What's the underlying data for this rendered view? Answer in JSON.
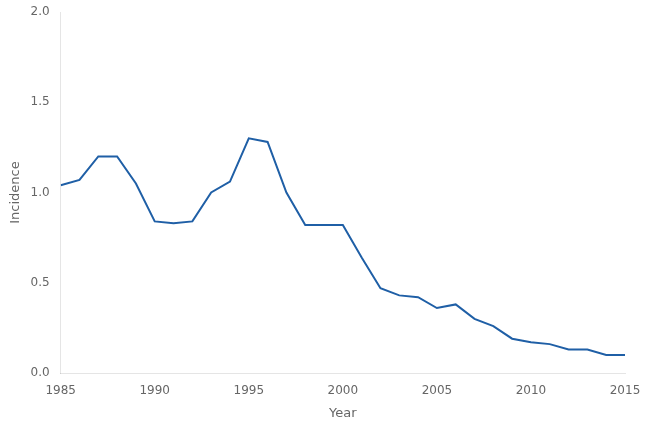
{
  "chart_data": {
    "type": "line",
    "xlabel": "Year",
    "ylabel": "Incidence",
    "x": [
      1985,
      1986,
      1987,
      1988,
      1989,
      1990,
      1991,
      1992,
      1993,
      1994,
      1995,
      1996,
      1997,
      1998,
      1999,
      2000,
      2001,
      2002,
      2003,
      2004,
      2005,
      2006,
      2007,
      2008,
      2009,
      2010,
      2011,
      2012,
      2013,
      2014,
      2015
    ],
    "values": [
      1.04,
      1.07,
      1.2,
      1.2,
      1.05,
      0.84,
      0.83,
      0.84,
      1.0,
      1.06,
      1.3,
      1.28,
      1.0,
      0.82,
      0.82,
      0.82,
      0.64,
      0.47,
      0.43,
      0.42,
      0.36,
      0.38,
      0.3,
      0.26,
      0.19,
      0.17,
      0.16,
      0.13,
      0.13,
      0.1,
      0.1
    ],
    "color": "#1f5fa6",
    "marker": "none",
    "xlim": [
      1985,
      2015
    ],
    "xticks": [
      1985,
      1990,
      1995,
      2000,
      2005,
      2010,
      2015
    ],
    "ylim": [
      0.0,
      2.0
    ],
    "yticks": [
      {
        "value": 0,
        "label": "0.0"
      },
      0.5,
      {
        "value": 1,
        "label": "1.0"
      },
      1.5,
      {
        "value": 2,
        "label": "2.0"
      }
    ],
    "grid": false
  }
}
